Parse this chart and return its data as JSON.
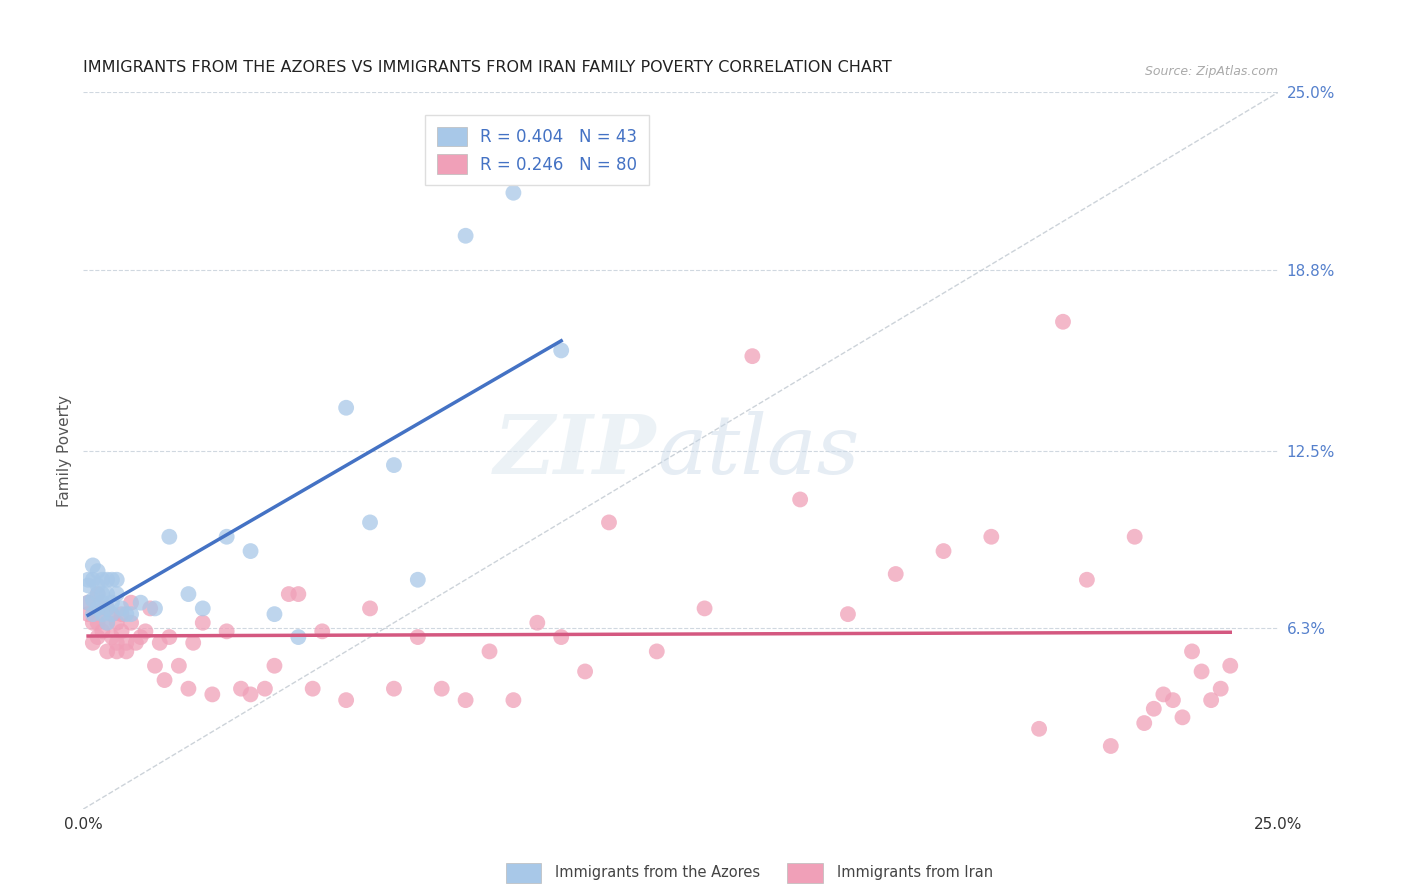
{
  "title": "IMMIGRANTS FROM THE AZORES VS IMMIGRANTS FROM IRAN FAMILY POVERTY CORRELATION CHART",
  "source": "Source: ZipAtlas.com",
  "ylabel": "Family Poverty",
  "legend_label1": "Immigrants from the Azores",
  "legend_label2": "Immigrants from Iran",
  "R1": 0.404,
  "N1": 43,
  "R2": 0.246,
  "N2": 80,
  "color_azores": "#a8c8e8",
  "color_iran": "#f0a0b8",
  "color_azores_line": "#4472c4",
  "color_iran_line": "#d45880",
  "color_diag": "#c0c8d0",
  "azores_x": [
    0.001,
    0.001,
    0.001,
    0.002,
    0.002,
    0.002,
    0.002,
    0.003,
    0.003,
    0.003,
    0.003,
    0.004,
    0.004,
    0.004,
    0.004,
    0.005,
    0.005,
    0.005,
    0.005,
    0.006,
    0.006,
    0.006,
    0.007,
    0.007,
    0.008,
    0.009,
    0.01,
    0.012,
    0.015,
    0.018,
    0.022,
    0.025,
    0.03,
    0.035,
    0.04,
    0.045,
    0.055,
    0.06,
    0.065,
    0.07,
    0.08,
    0.09,
    0.1
  ],
  "azores_y": [
    0.072,
    0.078,
    0.08,
    0.068,
    0.073,
    0.08,
    0.085,
    0.07,
    0.075,
    0.078,
    0.083,
    0.068,
    0.072,
    0.075,
    0.08,
    0.065,
    0.07,
    0.075,
    0.08,
    0.068,
    0.072,
    0.08,
    0.075,
    0.08,
    0.07,
    0.068,
    0.068,
    0.072,
    0.07,
    0.095,
    0.075,
    0.07,
    0.095,
    0.09,
    0.068,
    0.06,
    0.14,
    0.1,
    0.12,
    0.08,
    0.2,
    0.215,
    0.16
  ],
  "iran_x": [
    0.001,
    0.001,
    0.002,
    0.002,
    0.003,
    0.003,
    0.003,
    0.004,
    0.004,
    0.005,
    0.005,
    0.005,
    0.006,
    0.006,
    0.007,
    0.007,
    0.007,
    0.008,
    0.008,
    0.009,
    0.009,
    0.01,
    0.01,
    0.011,
    0.012,
    0.013,
    0.014,
    0.015,
    0.016,
    0.017,
    0.018,
    0.02,
    0.022,
    0.023,
    0.025,
    0.027,
    0.03,
    0.033,
    0.035,
    0.038,
    0.04,
    0.043,
    0.045,
    0.048,
    0.05,
    0.055,
    0.06,
    0.065,
    0.07,
    0.075,
    0.08,
    0.085,
    0.09,
    0.095,
    0.1,
    0.105,
    0.11,
    0.12,
    0.13,
    0.14,
    0.15,
    0.16,
    0.17,
    0.18,
    0.19,
    0.2,
    0.205,
    0.21,
    0.215,
    0.22,
    0.222,
    0.224,
    0.226,
    0.228,
    0.23,
    0.232,
    0.234,
    0.236,
    0.238,
    0.24
  ],
  "iran_y": [
    0.068,
    0.072,
    0.058,
    0.065,
    0.06,
    0.065,
    0.075,
    0.062,
    0.07,
    0.065,
    0.07,
    0.055,
    0.068,
    0.06,
    0.065,
    0.058,
    0.055,
    0.062,
    0.068,
    0.055,
    0.058,
    0.065,
    0.072,
    0.058,
    0.06,
    0.062,
    0.07,
    0.05,
    0.058,
    0.045,
    0.06,
    0.05,
    0.042,
    0.058,
    0.065,
    0.04,
    0.062,
    0.042,
    0.04,
    0.042,
    0.05,
    0.075,
    0.075,
    0.042,
    0.062,
    0.038,
    0.07,
    0.042,
    0.06,
    0.042,
    0.038,
    0.055,
    0.038,
    0.065,
    0.06,
    0.048,
    0.1,
    0.055,
    0.07,
    0.158,
    0.108,
    0.068,
    0.082,
    0.09,
    0.095,
    0.028,
    0.17,
    0.08,
    0.022,
    0.095,
    0.03,
    0.035,
    0.04,
    0.038,
    0.032,
    0.055,
    0.048,
    0.038,
    0.042,
    0.05
  ],
  "watermark": "ZIPatlas",
  "background_color": "#ffffff",
  "grid_color": "#d0d8e0",
  "xmin": 0.0,
  "xmax": 0.25,
  "ymin": 0.0,
  "ymax": 0.25
}
